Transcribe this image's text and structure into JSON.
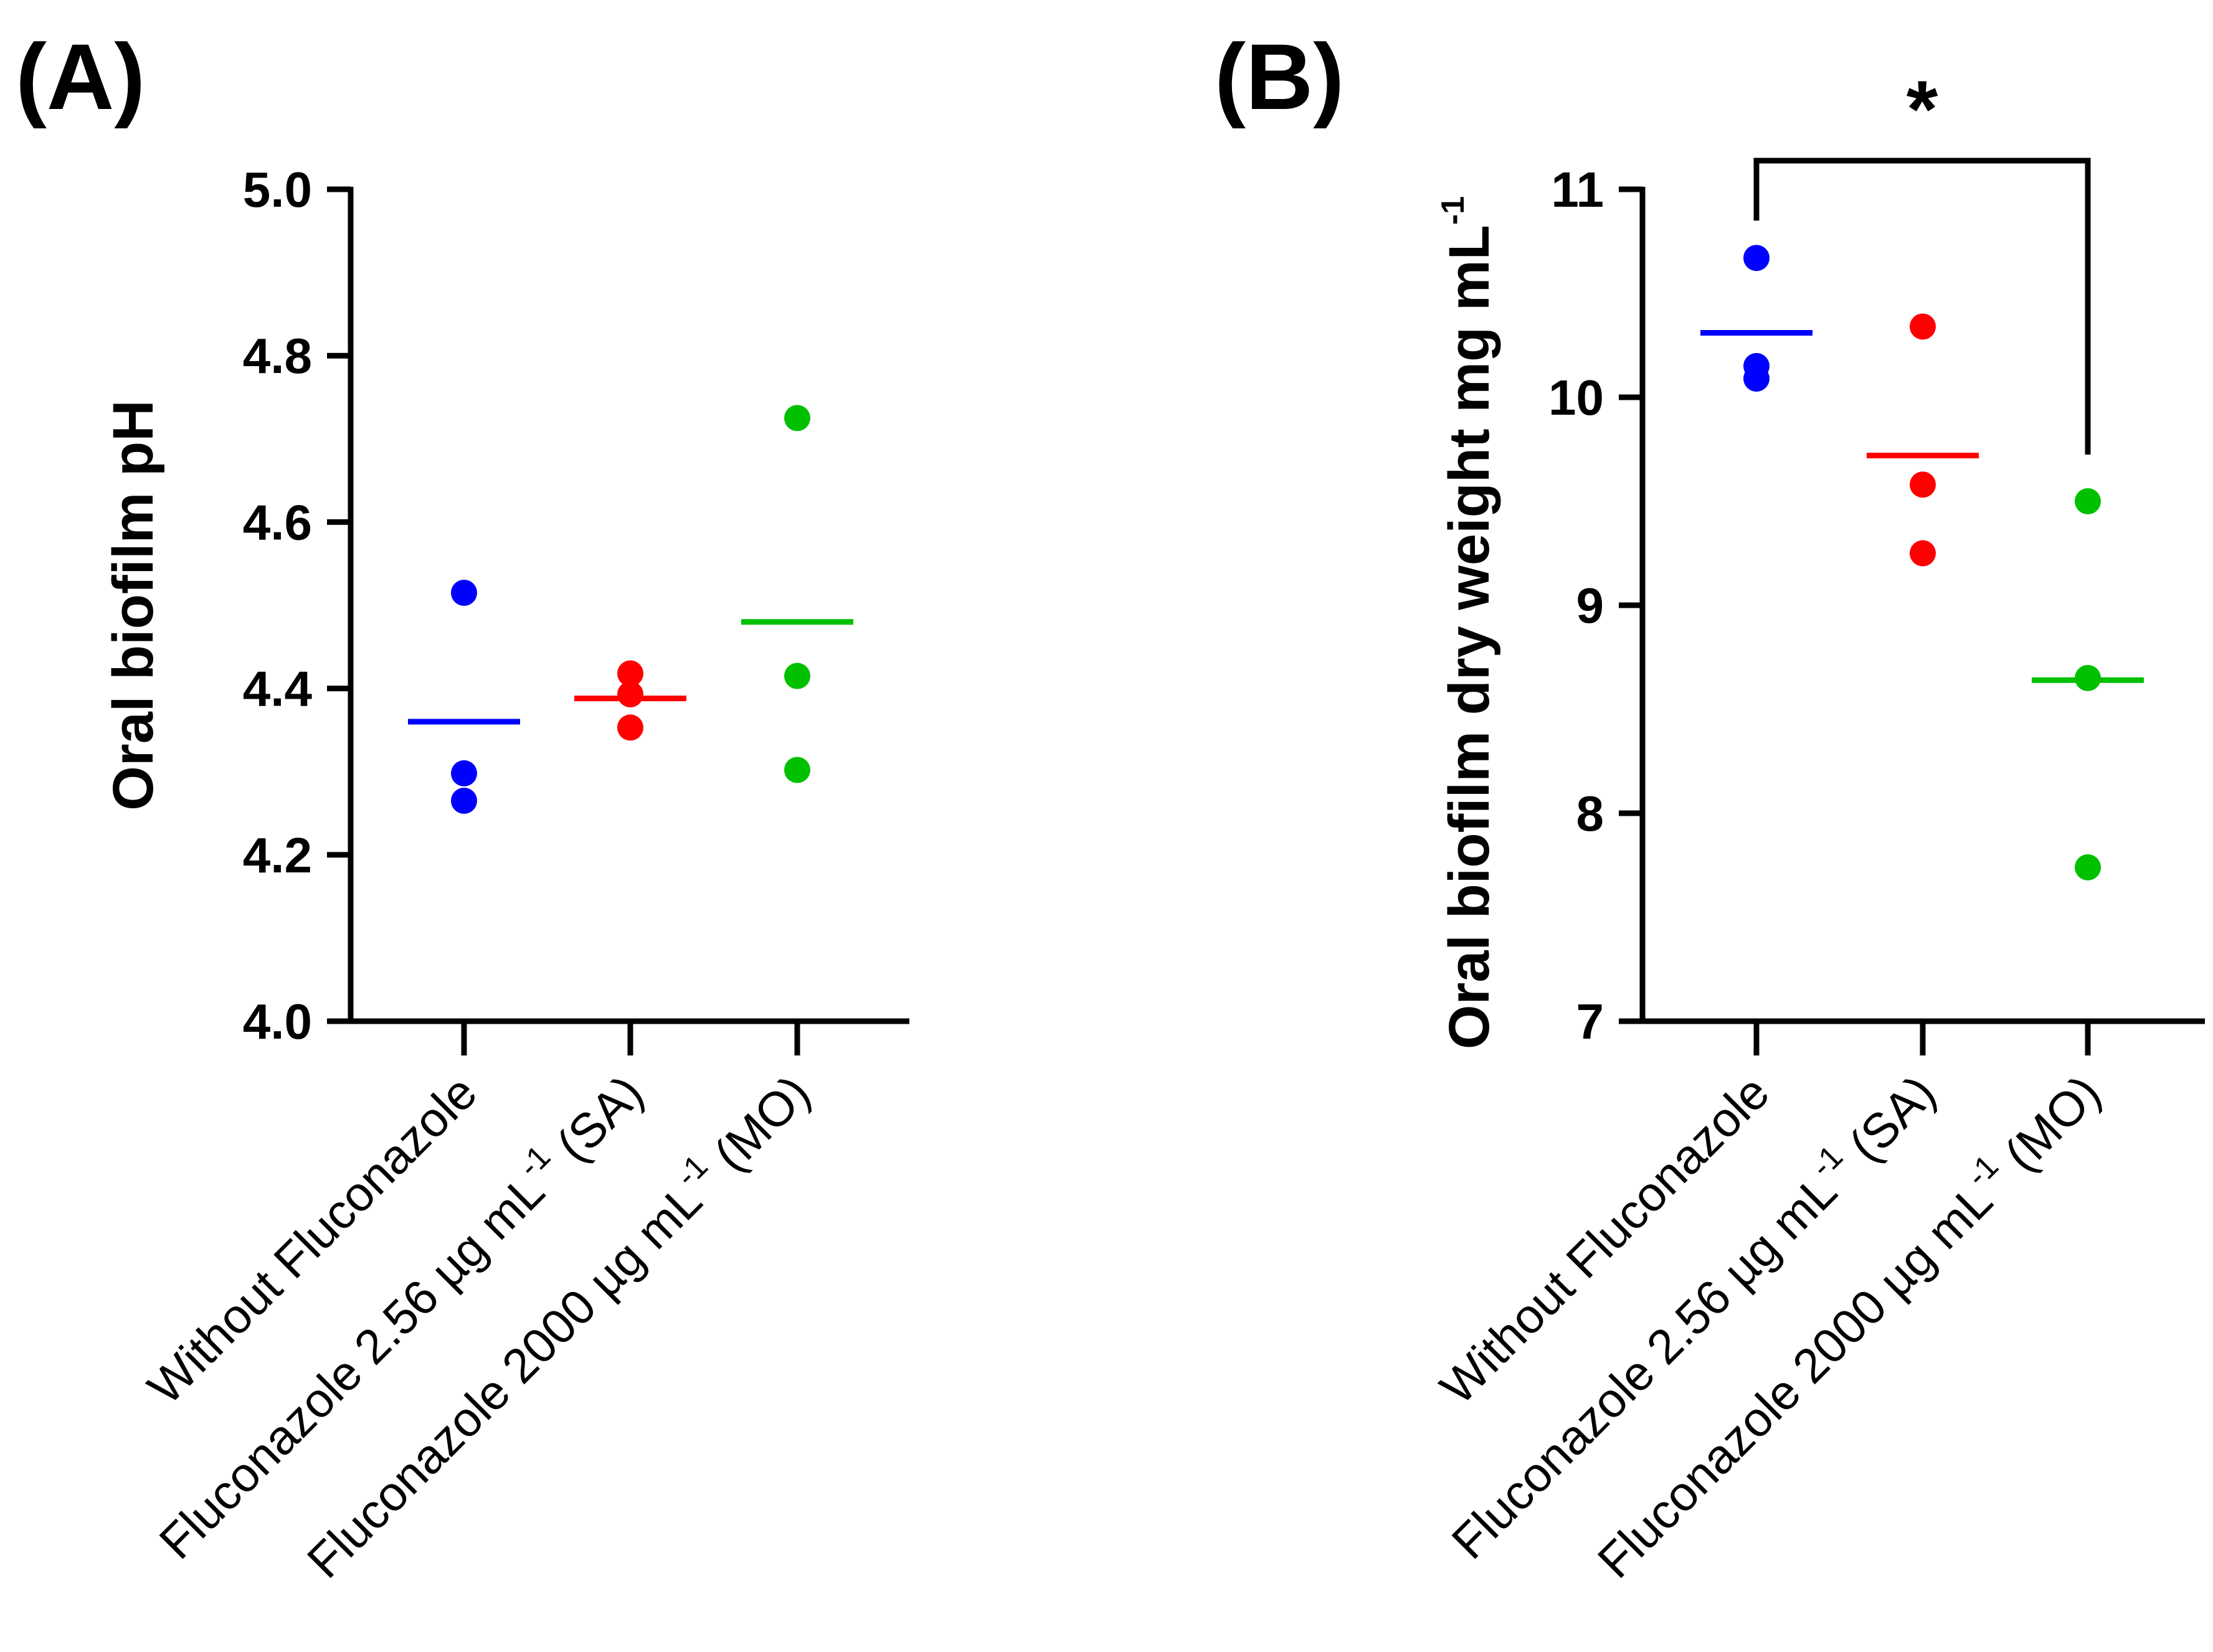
{
  "chart_data": [
    {
      "type": "scatter",
      "panel_label": "(A)",
      "title": "",
      "xlabel": "",
      "ylabel": "Oral biofilm pH",
      "ylim": [
        4.0,
        5.0
      ],
      "yticks": [
        "4.0",
        "4.2",
        "4.4",
        "4.6",
        "4.8",
        "5.0"
      ],
      "ytick_values": [
        4.0,
        4.2,
        4.4,
        4.6,
        4.8,
        5.0
      ],
      "categories": [
        {
          "main": "Without Fluconazole",
          "sup": "",
          "suffix": ""
        },
        {
          "main": "Fluconazole 2.56 µg mL",
          "sup": "-1",
          "suffix": "(SA)"
        },
        {
          "main": "Fluconazole 2000 µg mL",
          "sup": "-1",
          "suffix": "(MO)"
        }
      ],
      "series": [
        {
          "name": "Without Fluconazole",
          "color": "#0000ff",
          "points": [
            4.515,
            4.298,
            4.265
          ],
          "mean": 4.36
        },
        {
          "name": "Fluconazole 2.56 µg mL-1 (SA)",
          "color": "#ff0000",
          "points": [
            4.418,
            4.393,
            4.353
          ],
          "mean": 4.388
        },
        {
          "name": "Fluconazole 2000 µg mL-1 (MO)",
          "color": "#00c000",
          "points": [
            4.725,
            4.415,
            4.302
          ],
          "mean": 4.48
        }
      ]
    },
    {
      "type": "scatter",
      "panel_label": "(B)",
      "title": "",
      "xlabel": "",
      "ylabel": "Oral biofilm dry weight mg mL",
      "ylabel_sup": "-1",
      "ylim": [
        7,
        11
      ],
      "yticks": [
        "7",
        "8",
        "9",
        "10",
        "11"
      ],
      "ytick_values": [
        7,
        8,
        9,
        10,
        11
      ],
      "categories": [
        {
          "main": "Without Fluconazole",
          "sup": "",
          "suffix": ""
        },
        {
          "main": "Fluconazole 2.56 µg mL",
          "sup": "-1",
          "suffix": "(SA)"
        },
        {
          "main": "Fluconazole 2000 µg mL",
          "sup": "-1",
          "suffix": "(MO)"
        }
      ],
      "series": [
        {
          "name": "Without Fluconazole",
          "color": "#0000ff",
          "points": [
            10.67,
            10.15,
            10.09
          ],
          "mean": 10.31
        },
        {
          "name": "Fluconazole 2.56 µg mL-1 (SA)",
          "color": "#ff0000",
          "points": [
            10.34,
            9.58,
            9.25
          ],
          "mean": 9.72
        },
        {
          "name": "Fluconazole 2000 µg mL-1 (MO)",
          "color": "#00c000",
          "points": [
            9.5,
            8.65,
            7.74
          ],
          "mean": 8.64
        }
      ],
      "significance": {
        "from": 0,
        "to": 2,
        "label": "*"
      }
    }
  ]
}
